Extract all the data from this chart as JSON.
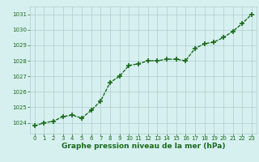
{
  "x": [
    0,
    1,
    2,
    3,
    4,
    5,
    6,
    7,
    8,
    9,
    10,
    11,
    12,
    13,
    14,
    15,
    16,
    17,
    18,
    19,
    20,
    21,
    22,
    23
  ],
  "y": [
    1023.8,
    1024.0,
    1024.1,
    1024.4,
    1024.5,
    1024.3,
    1024.8,
    1025.4,
    1026.6,
    1027.0,
    1027.7,
    1027.8,
    1028.0,
    1028.0,
    1028.1,
    1028.1,
    1028.0,
    1028.8,
    1029.1,
    1029.2,
    1029.5,
    1029.9,
    1030.4,
    1031.0
  ],
  "ylim": [
    1023.3,
    1031.5
  ],
  "yticks": [
    1024,
    1025,
    1026,
    1027,
    1028,
    1029,
    1030,
    1031
  ],
  "xticks": [
    0,
    1,
    2,
    3,
    4,
    5,
    6,
    7,
    8,
    9,
    10,
    11,
    12,
    13,
    14,
    15,
    16,
    17,
    18,
    19,
    20,
    21,
    22,
    23
  ],
  "line_color": "#1a6b1a",
  "marker_color": "#1a6b1a",
  "bg_color": "#d6f0f0",
  "grid_color": "#b0cccc",
  "xlabel": "Graphe pression niveau de la mer (hPa)",
  "xlabel_color": "#1a6b1a",
  "tick_color": "#1a6b1a",
  "marker": "+",
  "markersize": 4,
  "linewidth": 1.0,
  "tick_fontsize": 5,
  "xlabel_fontsize": 6.5
}
